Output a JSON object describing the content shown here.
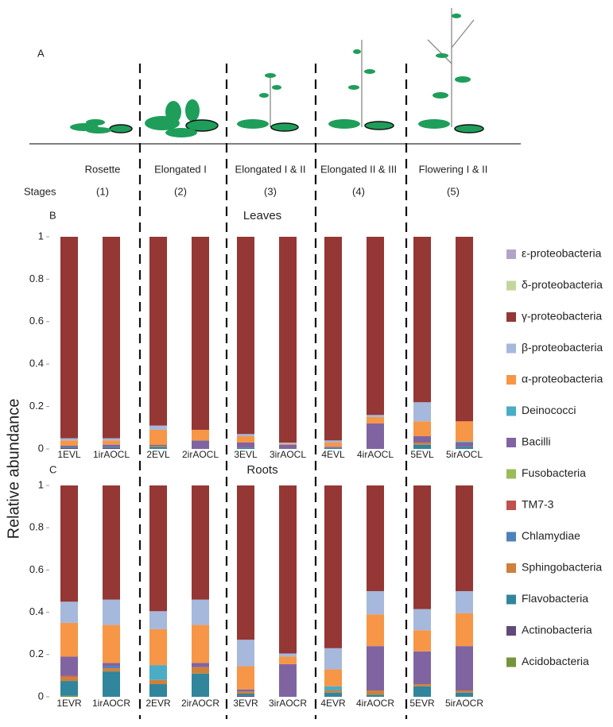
{
  "panel_a": {
    "label": "A",
    "stages_label": "Stages",
    "stages": [
      {
        "name": "Rosette",
        "number": "(1)"
      },
      {
        "name": "Elongated I",
        "number": "(2)"
      },
      {
        "name": "Elongated I & II",
        "number": "(3)"
      },
      {
        "name": "Elongated II & III",
        "number": "(4)"
      },
      {
        "name": "Flowering I & II",
        "number": "(5)"
      }
    ]
  },
  "y_label": "Relative   abundance",
  "chart_data": [
    {
      "type": "bar",
      "stacked": true,
      "panel_label": "B",
      "title": "Leaves",
      "categories": [
        "1EVL",
        "1irAOCL",
        "2EVL",
        "2irAOCL",
        "3EVL",
        "3irAOCL",
        "4EVL",
        "4irAOCL",
        "5EVL",
        "5irAOCL"
      ],
      "ylim": [
        0,
        1
      ],
      "yticks": [
        0,
        0.2,
        0.4,
        0.6,
        0.8,
        1
      ],
      "series": [
        {
          "name": "ε-proteobacteria",
          "color": "#b3a2c7",
          "values": [
            0,
            0,
            0,
            0,
            0,
            0,
            0,
            0,
            0,
            0
          ]
        },
        {
          "name": "δ-proteobacteria",
          "color": "#c3d69b",
          "values": [
            0,
            0,
            0,
            0,
            0,
            0,
            0,
            0,
            0,
            0
          ]
        },
        {
          "name": "γ-proteobacteria",
          "color": "#953735",
          "values": [
            0.95,
            0.95,
            0.89,
            0.91,
            0.93,
            0.97,
            0.96,
            0.84,
            0.78,
            0.87
          ]
        },
        {
          "name": "β-proteobacteria",
          "color": "#a6b8dc",
          "values": [
            0.01,
            0.01,
            0.02,
            0,
            0.01,
            0.005,
            0.01,
            0.01,
            0.09,
            0
          ]
        },
        {
          "name": "α-proteobacteria",
          "color": "#f79646",
          "values": [
            0.025,
            0.02,
            0.07,
            0.05,
            0.03,
            0.005,
            0.02,
            0.03,
            0.07,
            0.095
          ]
        },
        {
          "name": "Deinococci",
          "color": "#4bacc6",
          "values": [
            0,
            0,
            0,
            0,
            0,
            0,
            0,
            0,
            0,
            0.005
          ]
        },
        {
          "name": "Bacilli",
          "color": "#8064a2",
          "values": [
            0.005,
            0.01,
            0.005,
            0.04,
            0.025,
            0.02,
            0.005,
            0.12,
            0.03,
            0.02
          ]
        },
        {
          "name": "Fusobacteria",
          "color": "#9bbb59",
          "values": [
            0,
            0,
            0,
            0,
            0,
            0,
            0,
            0,
            0,
            0
          ]
        },
        {
          "name": "TM7-3",
          "color": "#c0504d",
          "values": [
            0,
            0,
            0,
            0,
            0,
            0,
            0,
            0,
            0,
            0
          ]
        },
        {
          "name": "Chlamydiae",
          "color": "#4f81bd",
          "values": [
            0,
            0,
            0,
            0,
            0,
            0,
            0,
            0,
            0,
            0
          ]
        },
        {
          "name": "Sphingobacteria",
          "color": "#d0803a",
          "values": [
            0,
            0,
            0.005,
            0,
            0,
            0,
            0,
            0,
            0.01,
            0
          ]
        },
        {
          "name": "Flavobacteria",
          "color": "#31859c",
          "values": [
            0.005,
            0.005,
            0.01,
            0,
            0.005,
            0,
            0.005,
            0,
            0.02,
            0.01
          ]
        },
        {
          "name": "Actinobacteria",
          "color": "#604a7b",
          "values": [
            0.005,
            0.005,
            0,
            0,
            0,
            0,
            0,
            0,
            0,
            0
          ]
        },
        {
          "name": "Acidobacteria",
          "color": "#77933c",
          "values": [
            0,
            0,
            0,
            0,
            0,
            0,
            0,
            0,
            0,
            0
          ]
        }
      ]
    },
    {
      "type": "bar",
      "stacked": true,
      "panel_label": "C",
      "title": "Roots",
      "categories": [
        "1EVR",
        "1irAOCR",
        "2EVR",
        "2irAOCR",
        "3EVR",
        "3irAOCR",
        "4EVR",
        "4irAOCR",
        "5EVR",
        "5irAOCR"
      ],
      "ylim": [
        0,
        1
      ],
      "yticks": [
        0,
        0.2,
        0.4,
        0.6,
        0.8,
        1
      ],
      "series": [
        {
          "values": [
            0,
            0,
            0,
            0,
            0,
            0,
            0,
            0,
            0,
            0
          ]
        },
        {
          "values": [
            0,
            0,
            0,
            0,
            0,
            0,
            0,
            0,
            0,
            0
          ]
        },
        {
          "values": [
            0.55,
            0.54,
            0.595,
            0.54,
            0.73,
            0.795,
            0.77,
            0.5,
            0.585,
            0.5
          ]
        },
        {
          "values": [
            0.1,
            0.12,
            0.085,
            0.12,
            0.125,
            0.015,
            0.1,
            0.11,
            0.1,
            0.105
          ]
        },
        {
          "values": [
            0.16,
            0.18,
            0.17,
            0.18,
            0.11,
            0.035,
            0.08,
            0.15,
            0.1,
            0.155
          ]
        },
        {
          "values": [
            0,
            0,
            0.07,
            0,
            0,
            0,
            0.02,
            0,
            0,
            0
          ]
        },
        {
          "values": [
            0.09,
            0.015,
            0,
            0.02,
            0.01,
            0.155,
            0,
            0.21,
            0.155,
            0.21
          ]
        },
        {
          "values": [
            0,
            0,
            0,
            0,
            0,
            0,
            0,
            0,
            0,
            0
          ]
        },
        {
          "values": [
            0.005,
            0,
            0,
            0,
            0,
            0,
            0,
            0,
            0,
            0
          ]
        },
        {
          "values": [
            0,
            0.01,
            0,
            0,
            0,
            0,
            0,
            0,
            0,
            0
          ]
        },
        {
          "values": [
            0.02,
            0.015,
            0.02,
            0.03,
            0.01,
            0,
            0.01,
            0.02,
            0.01,
            0.01
          ]
        },
        {
          "values": [
            0.07,
            0.12,
            0.06,
            0.11,
            0.01,
            0,
            0.02,
            0.01,
            0.05,
            0.02
          ]
        },
        {
          "values": [
            0,
            0,
            0,
            0,
            0.005,
            0,
            0,
            0,
            0,
            0
          ]
        },
        {
          "values": [
            0.005,
            0,
            0,
            0,
            0,
            0,
            0,
            0,
            0,
            0
          ]
        }
      ]
    }
  ]
}
